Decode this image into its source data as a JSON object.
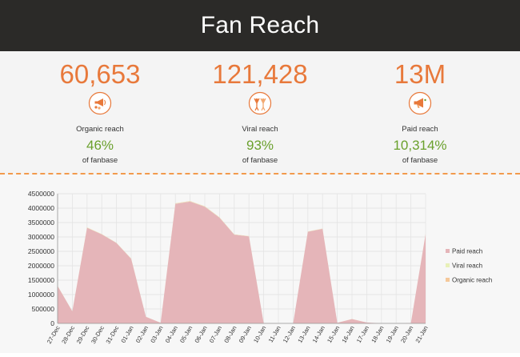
{
  "header": {
    "title": "Fan Reach"
  },
  "stats": [
    {
      "value": "60,653",
      "icon": "megaphone-people-icon",
      "label": "Organic reach",
      "percent": "46%",
      "sub": "of fanbase"
    },
    {
      "value": "121,428",
      "icon": "cheering-people-icon",
      "label": "Viral reach",
      "percent": "93%",
      "sub": "of fanbase"
    },
    {
      "value": "13M",
      "icon": "megaphone-icon",
      "label": "Paid reach",
      "percent": "10,314%",
      "sub": "of fanbase"
    }
  ],
  "colors": {
    "accent": "#e8793b",
    "positive": "#6aa02c",
    "paid": "#e5b5b9",
    "viral": "#e8f0b8",
    "organic": "#f5c89a"
  },
  "chart_data": {
    "type": "area",
    "x": [
      "27-Dec",
      "28-Dec",
      "29-Dec",
      "30-Dec",
      "31-Dec",
      "01-Jan",
      "02-Jan",
      "03-Jan",
      "04-Jan",
      "05-Jan",
      "06-Jan",
      "07-Jan",
      "08-Jan",
      "09-Jan",
      "10-Jan",
      "11-Jan",
      "12-Jan",
      "13-Jan",
      "14-Jan",
      "15-Jan",
      "16-Jan",
      "17-Jan",
      "18-Jan",
      "19-Jan",
      "20-Jan",
      "21-Jan"
    ],
    "series": [
      {
        "name": "Paid reach",
        "color": "#e5b5b9",
        "values": [
          1300000,
          420000,
          3320000,
          3090000,
          2790000,
          2240000,
          230000,
          20000,
          4150000,
          4230000,
          4050000,
          3670000,
          3080000,
          3020000,
          10000,
          0,
          0,
          3180000,
          3280000,
          20000,
          150000,
          30000,
          0,
          0,
          10000,
          3100000
        ]
      },
      {
        "name": "Viral reach",
        "color": "#e8f0b8",
        "values": [
          4000,
          2000,
          9000,
          8000,
          7000,
          6000,
          1000,
          500,
          10000,
          11000,
          10000,
          9000,
          8000,
          8000,
          300,
          0,
          0,
          8000,
          8000,
          300,
          800,
          300,
          0,
          0,
          200,
          8000
        ]
      },
      {
        "name": "Organic reach",
        "color": "#f5c89a",
        "values": [
          2000,
          1000,
          4000,
          4000,
          3000,
          3000,
          500,
          300,
          5000,
          5000,
          5000,
          4000,
          4000,
          4000,
          200,
          0,
          0,
          4000,
          4000,
          200,
          500,
          200,
          0,
          0,
          100,
          4000
        ]
      }
    ],
    "y_ticks": [
      "0",
      "500000",
      "1000000",
      "1500000",
      "2000000",
      "2500000",
      "3000000",
      "3500000",
      "4000000",
      "4500000"
    ],
    "ylim": [
      0,
      4500000
    ],
    "legend_position": "right",
    "grid": true
  }
}
